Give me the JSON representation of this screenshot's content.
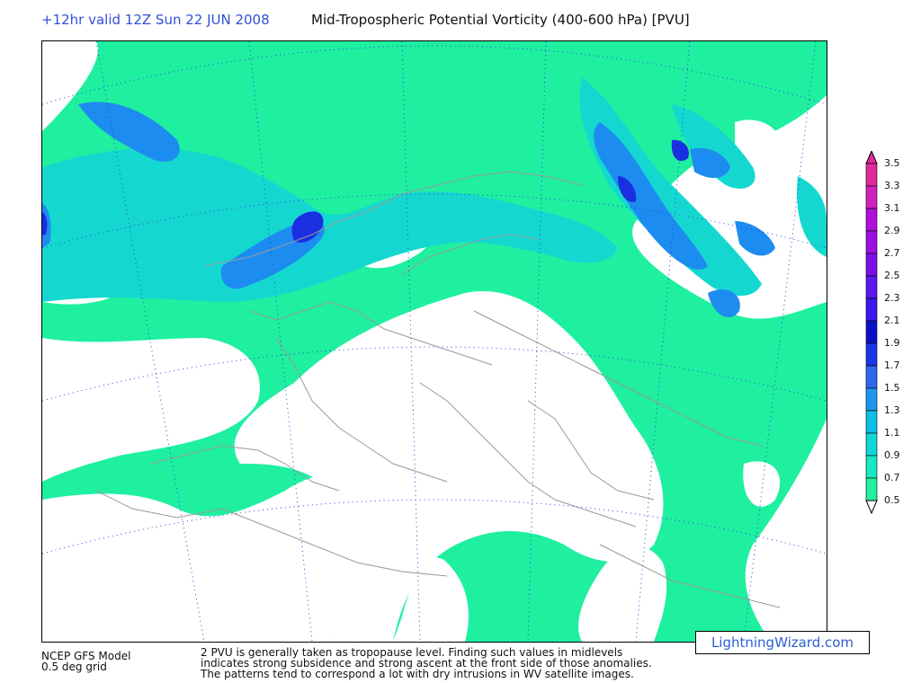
{
  "header": {
    "valid_time": "+12hr valid 12Z Sun 22 JUN 2008",
    "title": "Mid-Tropospheric Potential Vorticity (400-600 hPa) [PVU]"
  },
  "colorbar": {
    "labels": [
      "3.5",
      "3.3",
      "3.1",
      "2.9",
      "2.7",
      "2.5",
      "2.3",
      "2.1",
      "1.9",
      "1.7",
      "1.5",
      "1.3",
      "1.1",
      "0.9",
      "0.7",
      "0.5"
    ],
    "colors": [
      "#e02a9a",
      "#d020c0",
      "#b010d8",
      "#9a10e0",
      "#7a10e8",
      "#5a18f0",
      "#3a18ee",
      "#0a10c8",
      "#1838e8",
      "#2a68f0",
      "#1a98f0",
      "#0ac0e8",
      "#10d8d8",
      "#18e8c0",
      "#20f0a0",
      "#ffffff"
    ]
  },
  "map_colors": {
    "pv_low": "#1ef0a0",
    "pv_mid": "#14d8d0",
    "pv_high": "#1d8cf0",
    "pv_peak": "#1a30e0",
    "pv_max": "#0a10c8",
    "land_border": "#9a9a9a",
    "grid": "#3a3adc"
  },
  "footer": {
    "model": "NCEP GFS Model",
    "grid": "0.5 deg grid",
    "note_line1": "2 PVU is generally taken as tropopause level. Finding such values in midlevels",
    "note_line2": "indicates strong subsidence and strong ascent at the front side of those anomalies.",
    "note_line3": "The patterns tend to correspond a lot with dry intrusions in WV satellite images."
  },
  "brand": "LightningWizard.com"
}
